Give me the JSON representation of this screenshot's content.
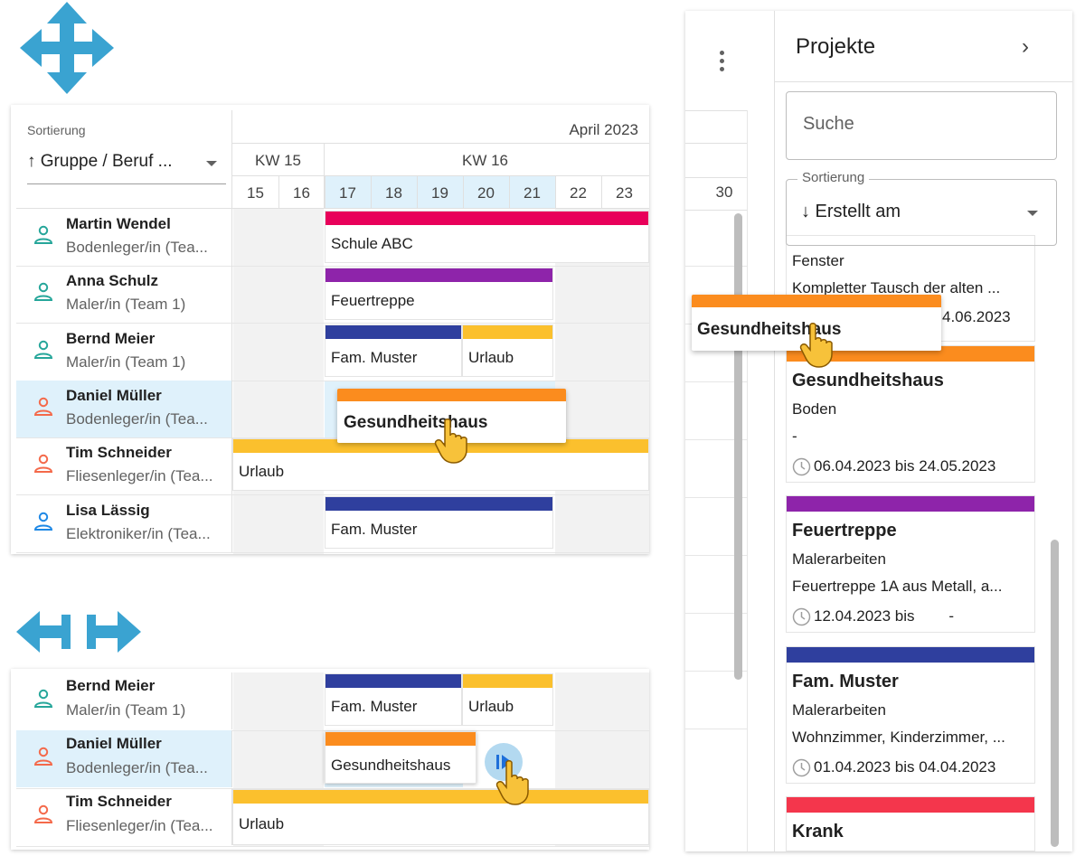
{
  "colors": {
    "accent_blue": "#3aa3d1",
    "red": "#e8005a",
    "purple": "#8e24aa",
    "navy": "#2f3f9e",
    "yellow": "#fbc02d",
    "orange": "#fb8c1e",
    "krank_red": "#f4364c",
    "teal_person": "#26a69a",
    "coral_person": "#f4694a",
    "blue_person": "#1e88e5"
  },
  "icons": {
    "move": "four-way-move-arrows-icon",
    "resize": "horizontal-resize-arrows-icon",
    "person": "person-outline-icon",
    "hand": "pointing-hand-cursor-icon",
    "clock": "clock-icon",
    "kebab": "more-vertical-icon",
    "chevron": "chevron-right-icon",
    "play": "resize-handle-icon"
  },
  "scheduler": {
    "sort_caption": "Sortierung",
    "sort_value": "↑ Gruppe / Beruf ...",
    "month": "April 2023",
    "weeks": [
      "KW 15",
      "KW 16"
    ],
    "days": [
      "15",
      "16",
      "17",
      "18",
      "19",
      "20",
      "21",
      "22",
      "23"
    ],
    "people": [
      {
        "name": "Martin Wendel",
        "role": "Bodenleger/in (Tea...",
        "color": "#26a69a"
      },
      {
        "name": "Anna Schulz",
        "role": "Maler/in (Team 1)",
        "color": "#26a69a"
      },
      {
        "name": "Bernd Meier",
        "role": "Maler/in (Team 1)",
        "color": "#26a69a"
      },
      {
        "name": "Daniel Müller",
        "role": "Bodenleger/in (Tea...",
        "color": "#f4694a"
      },
      {
        "name": "Tim Schneider",
        "role": "Fliesenleger/in (Tea...",
        "color": "#f4694a"
      },
      {
        "name": "Lisa Lässig",
        "role": "Elektroniker/in (Tea...",
        "color": "#1e88e5"
      }
    ],
    "bars": {
      "schule": "Schule ABC",
      "feuertreppe": "Feuertreppe",
      "muster": "Fam. Muster",
      "urlaub": "Urlaub",
      "urlaub_tim": "Urlaub",
      "muster_lisa": "Fam. Muster"
    },
    "drag_label": "Gesundheitshaus"
  },
  "resize_demo": {
    "people": [
      {
        "name": "Bernd Meier",
        "role": "Maler/in (Team 1)"
      },
      {
        "name": "Daniel Müller",
        "role": "Bodenleger/in (Tea..."
      },
      {
        "name": "Tim Schneider",
        "role": "Fliesenleger/in (Tea..."
      }
    ],
    "bars": {
      "muster": "Fam. Muster",
      "urlaub": "Urlaub",
      "gesundheitshaus": "Gesundheitshaus",
      "urlaub_tim": "Urlaub"
    }
  },
  "sidebar": {
    "mini_day": "30",
    "title": "Projekte",
    "chevron": "›",
    "search_placeholder": "Suche",
    "sort_label": "Sortierung",
    "sort_value": "↓ Erstellt am",
    "drag_label": "Gesundheitshaus",
    "partial_card": {
      "title": "Fenster",
      "desc": "Kompletter Tausch der alten ...",
      "date": "4.06.2023"
    },
    "cards": [
      {
        "title": "Gesundheitshaus",
        "sub": "Boden",
        "desc": "-",
        "date": "06.04.2023 bis 24.05.2023",
        "color": "#fb8c1e"
      },
      {
        "title": "Feuertreppe",
        "sub": "Malerarbeiten",
        "desc": "Feuertreppe 1A aus Metall, a...",
        "date": "12.04.2023 bis        -",
        "color": "#8e24aa"
      },
      {
        "title": "Fam. Muster",
        "sub": "Malerarbeiten",
        "desc": "Wohnzimmer, Kinderzimmer, ...",
        "date": "01.04.2023 bis 04.04.2023",
        "color": "#2f3f9e"
      },
      {
        "title": "Krank",
        "color": "#f4364c"
      }
    ]
  }
}
